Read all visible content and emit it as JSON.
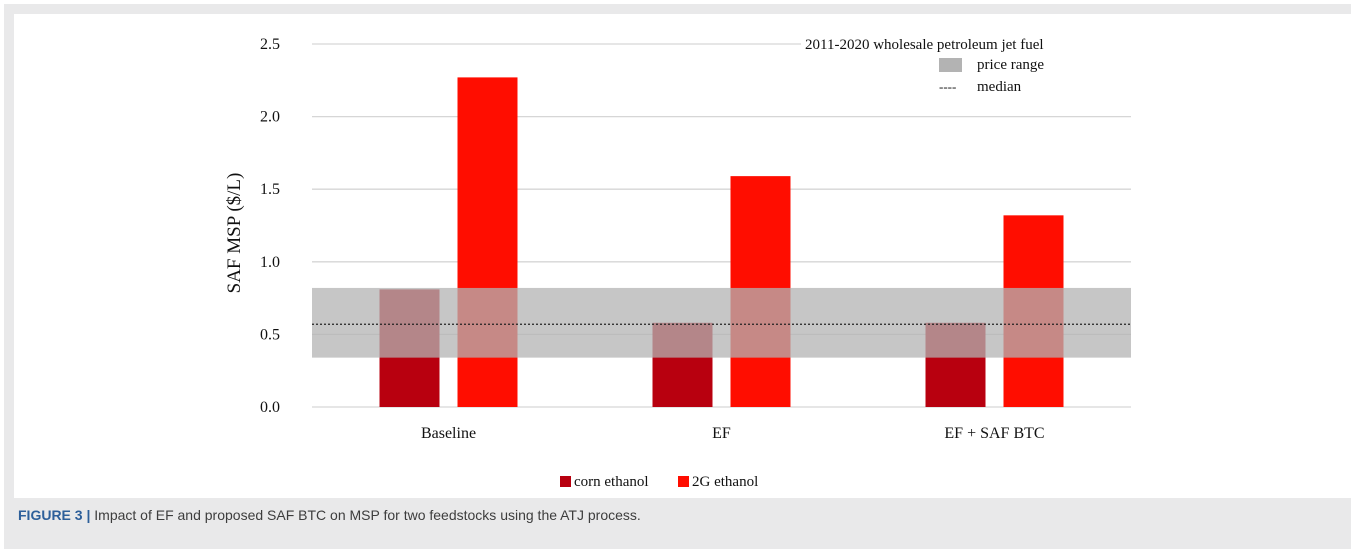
{
  "caption": {
    "label": "FIGURE 3 |",
    "text": "Impact of EF and proposed SAF BTC on MSP for two feedstocks using the ATJ process."
  },
  "colors": {
    "corn": "#b8000f",
    "second_gen": "#ff0d00",
    "band": "#b3b3b3",
    "median": "#222222",
    "grid": "#d6d6d6"
  },
  "legend": {
    "band_title": "2011-2020  wholesale  petroleum jet fuel",
    "range_label": "price range",
    "median_label": "median",
    "median_symbol": "----",
    "series_labels": [
      "corn ethanol",
      "2G ethanol"
    ]
  },
  "chart_data": {
    "type": "bar",
    "ylabel": "SAF MSP ($/L)",
    "xlabel": "",
    "ylim": [
      0,
      2.5
    ],
    "yticks": [
      "0.0",
      "0.5",
      "1.0",
      "1.5",
      "2.0",
      "2.5"
    ],
    "categories": [
      "Baseline",
      "EF",
      "EF + SAF BTC"
    ],
    "series": [
      {
        "name": "corn ethanol",
        "values": [
          0.81,
          0.58,
          0.58
        ]
      },
      {
        "name": "2G ethanol",
        "values": [
          2.27,
          1.59,
          1.32
        ]
      }
    ],
    "reference_band": {
      "min": 0.34,
      "max": 0.82
    },
    "reference_median": 0.57,
    "grid": true,
    "legend_position": "bottom"
  }
}
